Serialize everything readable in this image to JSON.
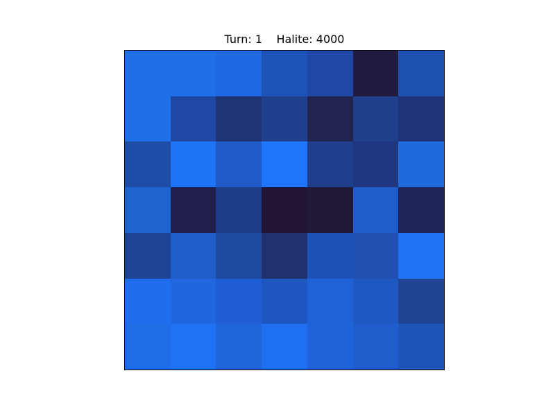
{
  "header": {
    "turn_label": "Turn:",
    "turn_value": "1",
    "halite_label": "Halite:",
    "halite_value": "4000"
  },
  "board": {
    "rows": 7,
    "cols": 7,
    "cell_colors": [
      [
        "#1f6fe8",
        "#1f6fe8",
        "#1f69e3",
        "#1e54b7",
        "#1e48a3",
        "#201b3f",
        "#1e50b0"
      ],
      [
        "#1f6fe8",
        "#1e48a3",
        "#1f3474",
        "#1f418d",
        "#20244f",
        "#1e3f8a",
        "#1f3478"
      ],
      [
        "#1e4da7",
        "#1f74f6",
        "#1e5bc6",
        "#2074f9",
        "#1e3f8b",
        "#1f3781",
        "#1f6add"
      ],
      [
        "#1f63d1",
        "#201e4b",
        "#1f3e8a",
        "#221434",
        "#211935",
        "#1f5dcd",
        "#20245a"
      ],
      [
        "#1f4496",
        "#1e5dca",
        "#1e4a9f",
        "#1f326f",
        "#1e52b7",
        "#1f50b2",
        "#1f72f2"
      ],
      [
        "#1f6eed",
        "#1f66df",
        "#1f5ed2",
        "#1f57c1",
        "#1f61d7",
        "#1e58c3",
        "#1f4593"
      ],
      [
        "#1f6ee7",
        "#1f72f3",
        "#1f64d9",
        "#1f70f0",
        "#1f61d7",
        "#1f5dcd",
        "#1e55b8"
      ]
    ]
  }
}
